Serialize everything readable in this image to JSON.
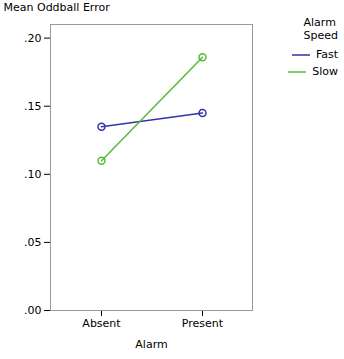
{
  "chart_data": {
    "type": "line",
    "categories": [
      "Absent",
      "Present"
    ],
    "series": [
      {
        "name": "Fast",
        "color": "#3333aa",
        "marker": "circle",
        "values": [
          0.135,
          0.145
        ]
      },
      {
        "name": "Slow",
        "color": "#55bb33",
        "marker": "circle",
        "values": [
          0.11,
          0.186
        ]
      }
    ],
    "xlabel": "Alarm",
    "ylabel": "Mean Oddball Error",
    "ylim": [
      0.0,
      0.21
    ],
    "yticks": [
      {
        "value": 0.0,
        "label": ".00"
      },
      {
        "value": 0.05,
        "label": ".05"
      },
      {
        "value": 0.1,
        "label": ".10"
      },
      {
        "value": 0.15,
        "label": ".15"
      },
      {
        "value": 0.2,
        "label": ".20"
      }
    ],
    "legend": "upper right",
    "legend_title": "Alarm\nSpeed"
  }
}
